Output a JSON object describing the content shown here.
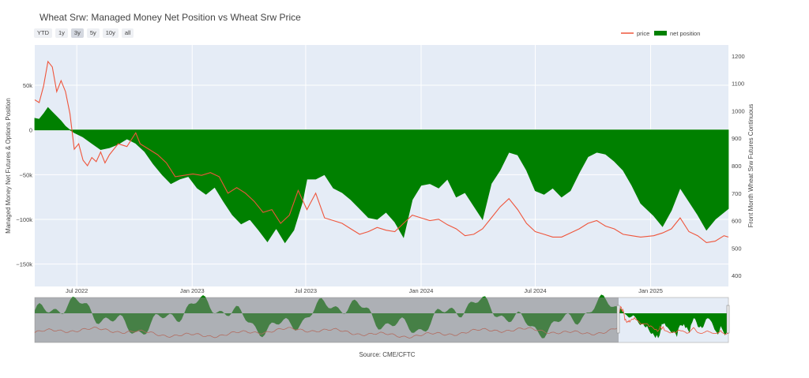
{
  "title": "Wheat Srw: Managed Money Net Position vs Wheat Srw Price",
  "range_buttons": [
    "YTD",
    "1y",
    "3y",
    "5y",
    "10y",
    "all"
  ],
  "active_range": "3y",
  "legend": {
    "price": "price",
    "net": "net position"
  },
  "source": "Source: CME/CFTC",
  "colors": {
    "price": "#ef553b",
    "net": "#008000",
    "plot_bg": "#e5ecf6",
    "range_bg": "#808080"
  },
  "chart_data": {
    "type": "line+area",
    "y_label": "Managed Money Net Futures & Options Position",
    "y2_label": "Front Month Wheat Srw Futures Continuous",
    "x_range": [
      "2022-04-25",
      "2025-05-05"
    ],
    "y_range": [
      -175000,
      95000
    ],
    "y2_range": [
      360,
      1240
    ],
    "y_ticks": [
      {
        "v": 50000,
        "label": "50k"
      },
      {
        "v": 0,
        "label": "0"
      },
      {
        "v": -50000,
        "label": "−50k"
      },
      {
        "v": -100000,
        "label": "−100k"
      },
      {
        "v": -150000,
        "label": "−150k"
      }
    ],
    "y2_ticks": [
      1200,
      1100,
      1000,
      900,
      800,
      700,
      600,
      500,
      400
    ],
    "x_ticks": [
      {
        "date": "2022-07-01",
        "label": "Jul 2022"
      },
      {
        "date": "2023-01-01",
        "label": "Jan 2023"
      },
      {
        "date": "2023-07-01",
        "label": "Jul 2023"
      },
      {
        "date": "2024-01-01",
        "label": "Jan 2024"
      },
      {
        "date": "2024-07-01",
        "label": "Jul 2024"
      },
      {
        "date": "2025-01-01",
        "label": "Jan 2025"
      }
    ],
    "net_position": [
      [
        "2022-04-25",
        13000
      ],
      [
        "2022-05-02",
        12000
      ],
      [
        "2022-05-09",
        18000
      ],
      [
        "2022-05-16",
        25000
      ],
      [
        "2022-05-23",
        20000
      ],
      [
        "2022-05-30",
        15000
      ],
      [
        "2022-06-06",
        10000
      ],
      [
        "2022-06-13",
        4000
      ],
      [
        "2022-06-20",
        0
      ],
      [
        "2022-06-27",
        -3000
      ],
      [
        "2022-07-11",
        -8000
      ],
      [
        "2022-07-25",
        -15000
      ],
      [
        "2022-08-08",
        -22000
      ],
      [
        "2022-08-22",
        -20000
      ],
      [
        "2022-09-05",
        -16000
      ],
      [
        "2022-09-19",
        -10000
      ],
      [
        "2022-10-03",
        -15000
      ],
      [
        "2022-10-17",
        -24000
      ],
      [
        "2022-10-31",
        -38000
      ],
      [
        "2022-11-14",
        -50000
      ],
      [
        "2022-11-28",
        -60000
      ],
      [
        "2022-12-12",
        -55000
      ],
      [
        "2022-12-26",
        -52000
      ],
      [
        "2023-01-09",
        -65000
      ],
      [
        "2023-01-23",
        -72000
      ],
      [
        "2023-02-06",
        -64000
      ],
      [
        "2023-02-20",
        -80000
      ],
      [
        "2023-03-06",
        -95000
      ],
      [
        "2023-03-20",
        -105000
      ],
      [
        "2023-04-03",
        -100000
      ],
      [
        "2023-04-17",
        -112000
      ],
      [
        "2023-05-01",
        -125000
      ],
      [
        "2023-05-15",
        -110000
      ],
      [
        "2023-05-29",
        -126000
      ],
      [
        "2023-06-12",
        -112000
      ],
      [
        "2023-06-26",
        -80000
      ],
      [
        "2023-07-03",
        -55000
      ],
      [
        "2023-07-17",
        -55000
      ],
      [
        "2023-07-31",
        -50000
      ],
      [
        "2023-08-14",
        -65000
      ],
      [
        "2023-08-28",
        -70000
      ],
      [
        "2023-09-11",
        -78000
      ],
      [
        "2023-09-25",
        -88000
      ],
      [
        "2023-10-09",
        -98000
      ],
      [
        "2023-10-23",
        -100000
      ],
      [
        "2023-11-06",
        -92000
      ],
      [
        "2023-11-20",
        -103000
      ],
      [
        "2023-12-04",
        -120000
      ],
      [
        "2023-12-18",
        -78000
      ],
      [
        "2024-01-01",
        -62000
      ],
      [
        "2024-01-15",
        -60000
      ],
      [
        "2024-01-29",
        -65000
      ],
      [
        "2024-02-12",
        -55000
      ],
      [
        "2024-02-26",
        -75000
      ],
      [
        "2024-03-11",
        -70000
      ],
      [
        "2024-03-25",
        -85000
      ],
      [
        "2024-04-08",
        -100000
      ],
      [
        "2024-04-22",
        -60000
      ],
      [
        "2024-05-06",
        -45000
      ],
      [
        "2024-05-20",
        -25000
      ],
      [
        "2024-06-03",
        -28000
      ],
      [
        "2024-06-17",
        -45000
      ],
      [
        "2024-07-01",
        -68000
      ],
      [
        "2024-07-15",
        -72000
      ],
      [
        "2024-07-29",
        -65000
      ],
      [
        "2024-08-12",
        -75000
      ],
      [
        "2024-08-26",
        -68000
      ],
      [
        "2024-09-09",
        -48000
      ],
      [
        "2024-09-23",
        -30000
      ],
      [
        "2024-10-07",
        -25000
      ],
      [
        "2024-10-21",
        -27000
      ],
      [
        "2024-11-04",
        -35000
      ],
      [
        "2024-11-18",
        -45000
      ],
      [
        "2024-12-02",
        -62000
      ],
      [
        "2024-12-16",
        -82000
      ],
      [
        "2025-01-06",
        -96000
      ],
      [
        "2025-01-20",
        -108000
      ],
      [
        "2025-02-03",
        -90000
      ],
      [
        "2025-02-17",
        -65000
      ],
      [
        "2025-03-03",
        -80000
      ],
      [
        "2025-03-17",
        -95000
      ],
      [
        "2025-03-31",
        -112000
      ],
      [
        "2025-04-14",
        -100000
      ],
      [
        "2025-04-28",
        -92000
      ],
      [
        "2025-05-05",
        -88000
      ]
    ],
    "price": [
      [
        "2022-04-25",
        1040
      ],
      [
        "2022-05-02",
        1030
      ],
      [
        "2022-05-09",
        1090
      ],
      [
        "2022-05-16",
        1180
      ],
      [
        "2022-05-23",
        1160
      ],
      [
        "2022-05-30",
        1070
      ],
      [
        "2022-06-06",
        1110
      ],
      [
        "2022-06-13",
        1070
      ],
      [
        "2022-06-20",
        990
      ],
      [
        "2022-06-27",
        860
      ],
      [
        "2022-07-04",
        880
      ],
      [
        "2022-07-11",
        820
      ],
      [
        "2022-07-18",
        800
      ],
      [
        "2022-07-25",
        830
      ],
      [
        "2022-08-01",
        815
      ],
      [
        "2022-08-08",
        850
      ],
      [
        "2022-08-15",
        810
      ],
      [
        "2022-08-22",
        840
      ],
      [
        "2022-09-05",
        880
      ],
      [
        "2022-09-19",
        870
      ],
      [
        "2022-10-03",
        920
      ],
      [
        "2022-10-10",
        880
      ],
      [
        "2022-10-24",
        860
      ],
      [
        "2022-11-07",
        840
      ],
      [
        "2022-11-21",
        810
      ],
      [
        "2022-12-05",
        760
      ],
      [
        "2022-12-19",
        765
      ],
      [
        "2023-01-02",
        770
      ],
      [
        "2023-01-16",
        765
      ],
      [
        "2023-01-30",
        775
      ],
      [
        "2023-02-13",
        760
      ],
      [
        "2023-02-27",
        700
      ],
      [
        "2023-03-13",
        720
      ],
      [
        "2023-03-27",
        700
      ],
      [
        "2023-04-10",
        670
      ],
      [
        "2023-04-24",
        630
      ],
      [
        "2023-05-08",
        640
      ],
      [
        "2023-05-22",
        590
      ],
      [
        "2023-06-05",
        620
      ],
      [
        "2023-06-19",
        710
      ],
      [
        "2023-07-03",
        640
      ],
      [
        "2023-07-17",
        700
      ],
      [
        "2023-07-31",
        610
      ],
      [
        "2023-08-14",
        600
      ],
      [
        "2023-08-28",
        590
      ],
      [
        "2023-09-11",
        570
      ],
      [
        "2023-09-25",
        550
      ],
      [
        "2023-10-09",
        560
      ],
      [
        "2023-10-23",
        575
      ],
      [
        "2023-11-06",
        565
      ],
      [
        "2023-11-20",
        560
      ],
      [
        "2023-12-04",
        590
      ],
      [
        "2023-12-18",
        620
      ],
      [
        "2024-01-01",
        610
      ],
      [
        "2024-01-15",
        600
      ],
      [
        "2024-01-29",
        605
      ],
      [
        "2024-02-12",
        585
      ],
      [
        "2024-02-26",
        570
      ],
      [
        "2024-03-11",
        545
      ],
      [
        "2024-03-25",
        550
      ],
      [
        "2024-04-08",
        570
      ],
      [
        "2024-04-22",
        610
      ],
      [
        "2024-05-06",
        650
      ],
      [
        "2024-05-20",
        680
      ],
      [
        "2024-06-03",
        640
      ],
      [
        "2024-06-17",
        590
      ],
      [
        "2024-07-01",
        560
      ],
      [
        "2024-07-15",
        550
      ],
      [
        "2024-07-29",
        540
      ],
      [
        "2024-08-12",
        540
      ],
      [
        "2024-08-26",
        555
      ],
      [
        "2024-09-09",
        570
      ],
      [
        "2024-09-23",
        590
      ],
      [
        "2024-10-07",
        600
      ],
      [
        "2024-10-21",
        580
      ],
      [
        "2024-11-04",
        570
      ],
      [
        "2024-11-18",
        550
      ],
      [
        "2024-12-02",
        545
      ],
      [
        "2024-12-16",
        540
      ],
      [
        "2025-01-06",
        545
      ],
      [
        "2025-01-20",
        555
      ],
      [
        "2025-02-03",
        570
      ],
      [
        "2025-02-17",
        610
      ],
      [
        "2025-03-03",
        560
      ],
      [
        "2025-03-17",
        545
      ],
      [
        "2025-03-31",
        520
      ],
      [
        "2025-04-14",
        525
      ],
      [
        "2025-04-28",
        545
      ],
      [
        "2025-05-05",
        540
      ]
    ]
  }
}
